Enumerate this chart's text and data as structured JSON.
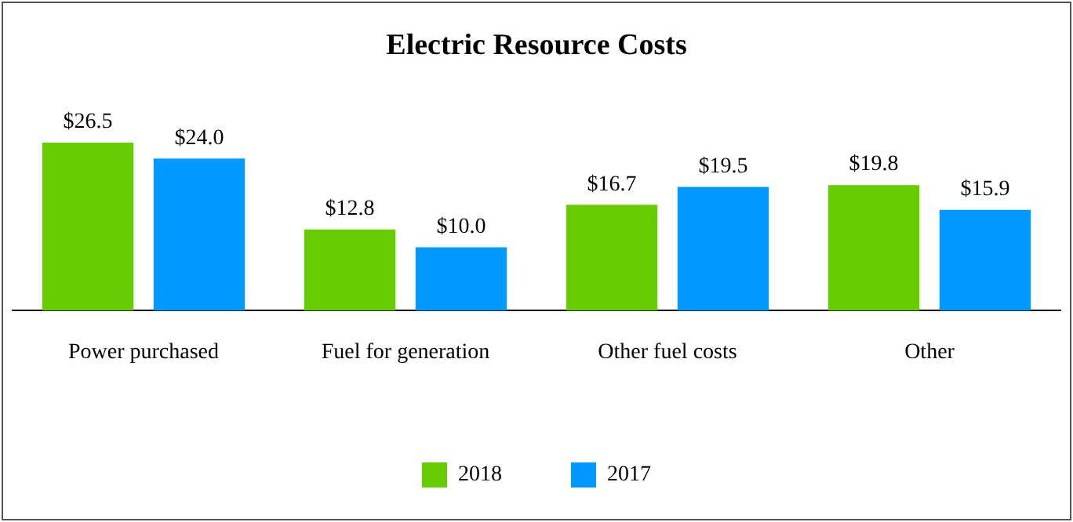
{
  "chart_data": {
    "type": "bar",
    "title": "Electric Resource Costs",
    "categories": [
      "Power purchased",
      "Fuel for generation",
      "Other fuel costs",
      "Other"
    ],
    "series": [
      {
        "name": "2018",
        "color": "#66cc00",
        "values": [
          26.5,
          12.8,
          16.7,
          19.8
        ],
        "value_labels": [
          "$26.5",
          "$12.8",
          "$16.7",
          "$19.8"
        ]
      },
      {
        "name": "2017",
        "color": "#0099ff",
        "values": [
          24.0,
          10.0,
          19.5,
          15.9
        ],
        "value_labels": [
          "$24.0",
          "$10.0",
          "$19.5",
          "$15.9"
        ]
      }
    ],
    "grid": false,
    "legend": "bottom"
  }
}
